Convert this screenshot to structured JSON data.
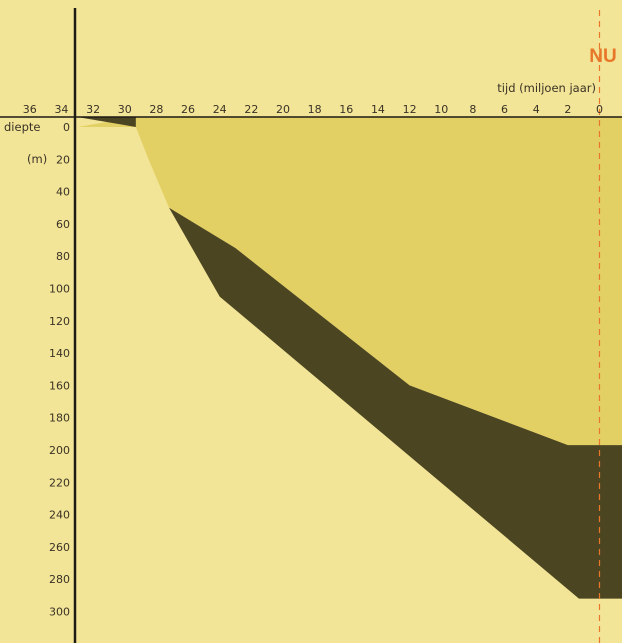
{
  "chart_data": {
    "type": "area",
    "xlabel": "tijd (miljoen jaar)",
    "ylabel_line1": "diepte",
    "ylabel_line2": "(m)",
    "marker_label": "NU",
    "x_ticks": [
      36,
      34,
      32,
      30,
      28,
      26,
      24,
      22,
      20,
      18,
      16,
      14,
      12,
      10,
      8,
      6,
      4,
      2,
      0
    ],
    "y_ticks": [
      0,
      20,
      40,
      60,
      80,
      100,
      120,
      140,
      160,
      180,
      200,
      220,
      240,
      260,
      280,
      300
    ],
    "xlim": [
      37,
      -1.5
    ],
    "ylim": [
      0,
      320
    ],
    "x_reversed": true,
    "y_reversed": true,
    "colors": {
      "background": "#f3e597",
      "upper_fill": "#e3d065",
      "band_fill": "#4c4522",
      "axis": "#1e1a14",
      "marker": "#e8772a"
    },
    "series": [
      {
        "top_boundary": [
          [
            33,
            0
          ],
          [
            29.3,
            0
          ],
          [
            28.5,
            20
          ],
          [
            27.2,
            50
          ],
          [
            23,
            75
          ],
          [
            12,
            160
          ],
          [
            2,
            197
          ],
          [
            -1.5,
            197
          ]
        ]
      },
      {
        "bottom_boundary": [
          [
            33,
            0
          ],
          [
            29.3,
            0
          ],
          [
            28.5,
            20
          ],
          [
            27.2,
            50
          ],
          [
            24,
            105
          ],
          [
            1.3,
            292
          ],
          [
            -1.5,
            292
          ]
        ]
      }
    ]
  }
}
